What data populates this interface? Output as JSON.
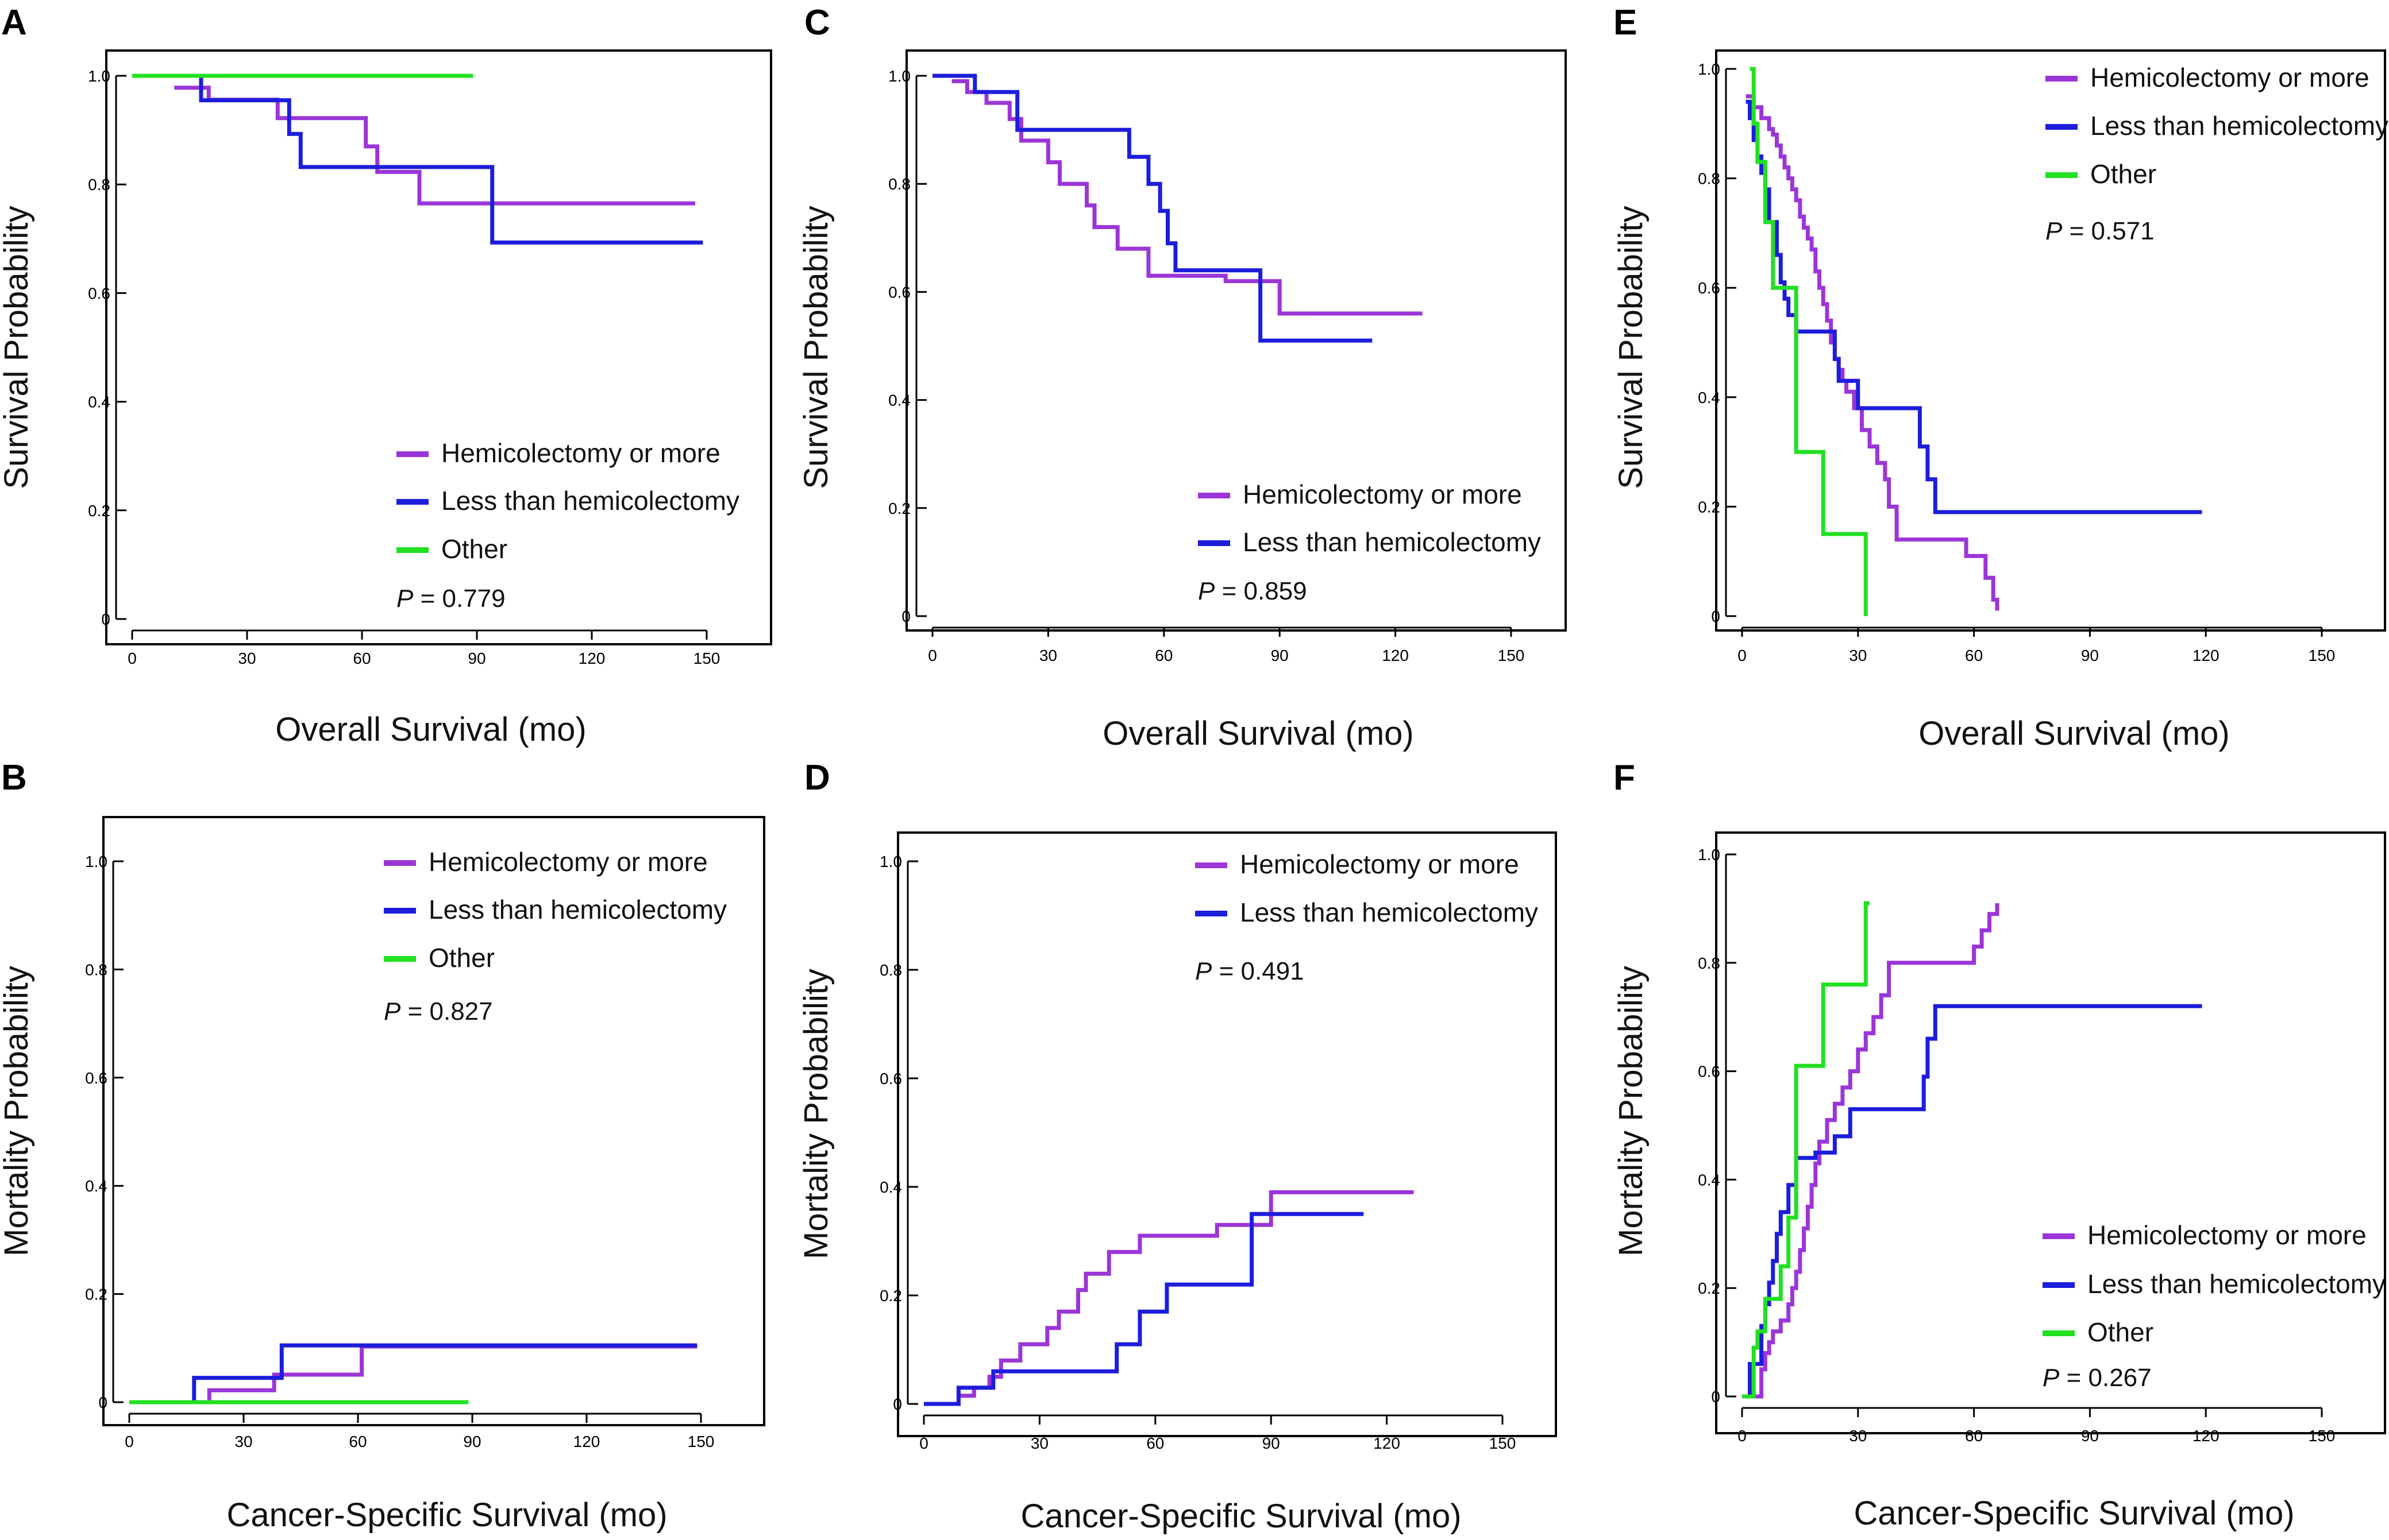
{
  "colors": {
    "hemicolectomy": "#9b35d8",
    "less_than": "#1d1ddc",
    "other": "#22e022",
    "axis": "#000000",
    "frame": "#000000"
  },
  "chart_data": [
    {
      "panel": "A",
      "type": "line",
      "step": true,
      "xlabel": "Overall Survival (mo)",
      "ylabel": "Survival Probability",
      "xlim": [
        0,
        150
      ],
      "ylim": [
        0,
        1.0
      ],
      "xticks": [
        "0",
        "30",
        "60",
        "90",
        "120",
        "150"
      ],
      "yticks": [
        "0",
        "0.2",
        "0.4",
        "0.6",
        "0.8",
        "1.0"
      ],
      "legend": [
        "Hemicolectomy or more",
        "Less than hemicolectomy",
        "Other"
      ],
      "legend_position": "bottom-right",
      "p_label": "P",
      "p_value": " = 0.779",
      "series": [
        {
          "name": "Hemicolectomy or more",
          "color_key": "hemicolectomy",
          "x": [
            11,
            20,
            38,
            61,
            64,
            75,
            147
          ],
          "y": [
            0.978,
            0.956,
            0.922,
            0.87,
            0.823,
            0.765,
            0.765
          ]
        },
        {
          "name": "Less than hemicolectomy",
          "color_key": "less_than",
          "x": [
            17,
            18,
            41,
            44,
            94,
            149
          ],
          "y": [
            1.0,
            0.955,
            0.893,
            0.832,
            0.693,
            0.693
          ]
        },
        {
          "name": "Other",
          "color_key": "other",
          "x": [
            0,
            89
          ],
          "y": [
            1.0,
            1.0
          ]
        }
      ]
    },
    {
      "panel": "B",
      "type": "line",
      "step": true,
      "xlabel": "Cancer-Specific Survival (mo)",
      "ylabel": "Mortality Probability",
      "xlim": [
        0,
        150
      ],
      "ylim": [
        0,
        1.0
      ],
      "xticks": [
        "0",
        "30",
        "60",
        "90",
        "120",
        "150"
      ],
      "yticks": [
        "0",
        "0.2",
        "0.4",
        "0.6",
        "0.8",
        "1.0"
      ],
      "legend": [
        "Hemicolectomy or more",
        "Less than hemicolectomy",
        "Other"
      ],
      "legend_position": "top-right",
      "p_label": "P",
      "p_value": " = 0.827",
      "series": [
        {
          "name": "Hemicolectomy or more",
          "color_key": "hemicolectomy",
          "x": [
            0,
            21,
            38,
            61,
            149
          ],
          "y": [
            0,
            0.022,
            0.051,
            0.103,
            0.103
          ]
        },
        {
          "name": "Less than hemicolectomy",
          "color_key": "less_than",
          "x": [
            0,
            17,
            40,
            149
          ],
          "y": [
            0,
            0.045,
            0.105,
            0.105
          ]
        },
        {
          "name": "Other",
          "color_key": "other",
          "x": [
            0,
            89
          ],
          "y": [
            0,
            0
          ]
        }
      ]
    },
    {
      "panel": "C",
      "type": "line",
      "step": true,
      "xlabel": "Overall Survival (mo)",
      "ylabel": "Survival Probability",
      "xlim": [
        0,
        150
      ],
      "ylim": [
        0,
        1.0
      ],
      "xticks": [
        "0",
        "30",
        "60",
        "90",
        "120",
        "150"
      ],
      "yticks": [
        "0",
        "0.2",
        "0.4",
        "0.6",
        "0.8",
        "1.0"
      ],
      "legend": [
        "Hemicolectomy or more",
        "Less than hemicolectomy"
      ],
      "legend_position": "bottom-right",
      "p_label": "P",
      "p_value": " = 0.859",
      "series": [
        {
          "name": "Hemicolectomy or more",
          "color_key": "hemicolectomy",
          "x": [
            5,
            9,
            14,
            20,
            23,
            30,
            33,
            40,
            42,
            48,
            56,
            76,
            90,
            127
          ],
          "y": [
            0.99,
            0.97,
            0.95,
            0.92,
            0.88,
            0.84,
            0.8,
            0.76,
            0.72,
            0.68,
            0.63,
            0.62,
            0.56,
            0.56
          ]
        },
        {
          "name": "Less than hemicolectomy",
          "color_key": "less_than",
          "x": [
            0,
            11,
            22,
            51,
            56,
            59,
            61,
            63,
            66,
            85,
            114
          ],
          "y": [
            1.0,
            0.97,
            0.9,
            0.85,
            0.8,
            0.75,
            0.69,
            0.64,
            0.64,
            0.51,
            0.51
          ]
        }
      ]
    },
    {
      "panel": "D",
      "type": "line",
      "step": true,
      "xlabel": "Cancer-Specific Survival (mo)",
      "ylabel": "Mortality Probability",
      "xlim": [
        0,
        150
      ],
      "ylim": [
        0,
        1.0
      ],
      "xticks": [
        "0",
        "30",
        "60",
        "90",
        "120",
        "150"
      ],
      "yticks": [
        "0",
        "0.2",
        "0.4",
        "0.6",
        "0.8",
        "1.0"
      ],
      "legend": [
        "Hemicolectomy or more",
        "Less than hemicolectomy"
      ],
      "legend_position": "top-right",
      "p_label": "P",
      "p_value": " = 0.491",
      "series": [
        {
          "name": "Hemicolectomy or more",
          "color_key": "hemicolectomy",
          "x": [
            0,
            9,
            13,
            17,
            20,
            25,
            32,
            35,
            40,
            42,
            48,
            56,
            76,
            90,
            127
          ],
          "y": [
            0,
            0.015,
            0.03,
            0.05,
            0.08,
            0.11,
            0.14,
            0.17,
            0.21,
            0.24,
            0.28,
            0.31,
            0.33,
            0.39,
            0.39
          ]
        },
        {
          "name": "Less than hemicolectomy",
          "color_key": "less_than",
          "x": [
            0,
            9,
            18,
            50,
            56,
            63,
            85,
            114
          ],
          "y": [
            0,
            0.03,
            0.06,
            0.11,
            0.17,
            0.22,
            0.35,
            0.35
          ]
        }
      ]
    },
    {
      "panel": "E",
      "type": "line",
      "step": true,
      "xlabel": "Overall Survival (mo)",
      "ylabel": "Survival Probability",
      "xlim": [
        0,
        150
      ],
      "ylim": [
        0,
        1.0
      ],
      "xticks": [
        "0",
        "30",
        "60",
        "90",
        "120",
        "150"
      ],
      "yticks": [
        "0",
        "0.2",
        "0.4",
        "0.6",
        "0.8",
        "1.0"
      ],
      "legend": [
        "Hemicolectomy or more",
        "Less than hemicolectomy",
        "Other"
      ],
      "legend_position": "top-right",
      "p_label": "P",
      "p_value": " = 0.571",
      "series": [
        {
          "name": "Hemicolectomy or more",
          "color_key": "hemicolectomy",
          "x": [
            1,
            3,
            5,
            7,
            8,
            9,
            10,
            11,
            12,
            13,
            14,
            15,
            16,
            17,
            18,
            19,
            20,
            21,
            22,
            23,
            24,
            25,
            26,
            27,
            29,
            31,
            33,
            35,
            37,
            38,
            40,
            45,
            48,
            55,
            58,
            63,
            65,
            66
          ],
          "y": [
            0.95,
            0.93,
            0.91,
            0.89,
            0.88,
            0.86,
            0.84,
            0.82,
            0.8,
            0.78,
            0.76,
            0.73,
            0.71,
            0.69,
            0.67,
            0.63,
            0.6,
            0.57,
            0.54,
            0.5,
            0.47,
            0.45,
            0.43,
            0.41,
            0.38,
            0.34,
            0.31,
            0.28,
            0.25,
            0.2,
            0.14,
            0.14,
            0.14,
            0.14,
            0.11,
            0.07,
            0.03,
            0.01
          ]
        },
        {
          "name": "Less than hemicolectomy",
          "color_key": "less_than",
          "x": [
            1,
            2,
            3,
            4,
            5,
            6,
            7,
            9,
            10,
            11,
            12,
            14,
            24,
            25,
            30,
            34,
            46,
            48,
            50,
            119
          ],
          "y": [
            0.94,
            0.91,
            0.87,
            0.84,
            0.81,
            0.78,
            0.72,
            0.66,
            0.61,
            0.58,
            0.55,
            0.52,
            0.47,
            0.43,
            0.38,
            0.38,
            0.31,
            0.25,
            0.19,
            0.19
          ]
        },
        {
          "name": "Other",
          "color_key": "other",
          "x": [
            2,
            3,
            4,
            6,
            8,
            12,
            14,
            21,
            32
          ],
          "y": [
            1.0,
            0.9,
            0.83,
            0.72,
            0.6,
            0.6,
            0.3,
            0.15,
            0.0
          ]
        }
      ]
    },
    {
      "panel": "F",
      "type": "line",
      "step": true,
      "xlabel": "Cancer-Specific Survival (mo)",
      "ylabel": "Mortality Probability",
      "xlim": [
        0,
        150
      ],
      "ylim": [
        0,
        1.0
      ],
      "xticks": [
        "0",
        "30",
        "60",
        "90",
        "120",
        "150"
      ],
      "yticks": [
        "0",
        "0.2",
        "0.4",
        "0.6",
        "0.8",
        "1.0"
      ],
      "legend": [
        "Hemicolectomy or more",
        "Less than hemicolectomy",
        "Other"
      ],
      "legend_position": "bottom-right",
      "p_label": "P",
      "p_value": " = 0.267",
      "series": [
        {
          "name": "Hemicolectomy or more",
          "color_key": "hemicolectomy",
          "x": [
            0,
            5,
            6,
            7,
            8,
            10,
            12,
            13,
            14,
            15,
            16,
            17,
            18,
            19,
            20,
            22,
            24,
            26,
            28,
            30,
            32,
            34,
            36,
            38,
            60,
            62,
            64,
            66
          ],
          "y": [
            0,
            0.05,
            0.08,
            0.1,
            0.12,
            0.14,
            0.17,
            0.2,
            0.23,
            0.27,
            0.31,
            0.35,
            0.39,
            0.43,
            0.47,
            0.51,
            0.54,
            0.57,
            0.6,
            0.64,
            0.67,
            0.7,
            0.74,
            0.8,
            0.83,
            0.86,
            0.89,
            0.91
          ]
        },
        {
          "name": "Less than hemicolectomy",
          "color_key": "less_than",
          "x": [
            0,
            2,
            5,
            6,
            7,
            8,
            9,
            10,
            12,
            14,
            19,
            24,
            28,
            47,
            48,
            50,
            119
          ],
          "y": [
            0,
            0.06,
            0.13,
            0.17,
            0.21,
            0.25,
            0.3,
            0.34,
            0.39,
            0.44,
            0.45,
            0.48,
            0.53,
            0.59,
            0.66,
            0.72,
            0.72
          ]
        },
        {
          "name": "Other",
          "color_key": "other",
          "x": [
            0,
            3,
            4,
            6,
            10,
            12,
            14,
            21,
            32,
            33
          ],
          "y": [
            0,
            0.09,
            0.12,
            0.18,
            0.24,
            0.33,
            0.61,
            0.76,
            0.91,
            0.91
          ]
        }
      ]
    }
  ]
}
